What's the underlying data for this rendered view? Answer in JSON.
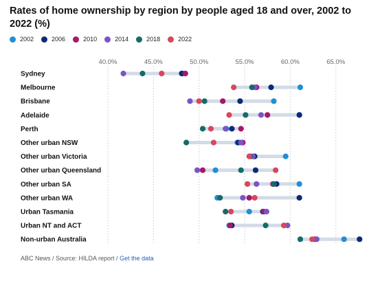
{
  "header": {
    "title": "Rates of home ownership by region by people aged 18 and over, 2002 to 2022 (%)"
  },
  "footer": {
    "source": "ABC News / Source: HILDA report / ",
    "link": "Get the data"
  },
  "chart_data": {
    "type": "scatter",
    "title": "Rates of home ownership by region by people aged 18 and over, 2002 to 2022 (%)",
    "xlim": [
      40,
      67.5
    ],
    "x_ticks": [
      40,
      45,
      50,
      55,
      60,
      65
    ],
    "x_tick_labels": [
      "40.0%",
      "45.0%",
      "50.0%",
      "55.0%",
      "60.0%",
      "65.0%"
    ],
    "grid": "vertical dotted",
    "legend_position": "top-left",
    "categories": [
      "Sydney",
      "Melbourne",
      "Brisbane",
      "Adelaide",
      "Perth",
      "Other urban NSW",
      "Other urban Victoria",
      "Other urban Queensland",
      "Other urban SA",
      "Other urban WA",
      "Urban Tasmania",
      "Urban NT and ACT",
      "Non-urban Australia"
    ],
    "series": [
      {
        "name": "2002",
        "color": "#1f8fd6",
        "values": [
          48.2,
          61.1,
          58.2,
          61.0,
          53.0,
          54.2,
          59.5,
          51.8,
          61.0,
          52.0,
          55.5,
          53.3,
          65.9
        ]
      },
      {
        "name": "2006",
        "color": "#0c2a78",
        "values": [
          48.1,
          57.9,
          54.5,
          61.0,
          53.6,
          54.3,
          56.1,
          56.2,
          58.5,
          61.0,
          57.0,
          53.6,
          67.6
        ]
      },
      {
        "name": "2010",
        "color": "#a6186a",
        "values": [
          48.5,
          56.3,
          52.6,
          57.5,
          54.6,
          54.8,
          55.9,
          50.4,
          58.1,
          55.5,
          57.1,
          53.4,
          62.7
        ]
      },
      {
        "name": "2014",
        "color": "#7a55c7",
        "values": [
          41.7,
          56.1,
          49.0,
          56.8,
          52.9,
          54.6,
          55.9,
          49.8,
          56.3,
          54.8,
          57.4,
          59.7,
          62.9
        ]
      },
      {
        "name": "2018",
        "color": "#166b6a",
        "values": [
          43.8,
          55.8,
          50.6,
          55.1,
          50.4,
          48.6,
          55.6,
          54.6,
          58.2,
          52.3,
          52.9,
          57.3,
          61.1
        ]
      },
      {
        "name": "2022",
        "color": "#d8475a",
        "values": [
          45.9,
          53.8,
          50.0,
          53.3,
          51.3,
          51.6,
          55.5,
          58.4,
          55.3,
          56.1,
          53.5,
          59.3,
          62.4
        ]
      }
    ]
  }
}
